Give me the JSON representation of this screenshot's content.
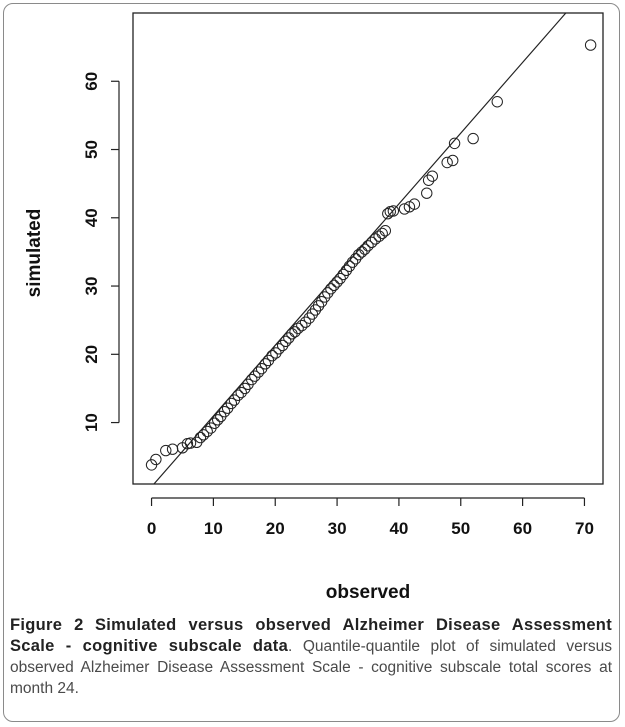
{
  "figure": {
    "label": "Figure 2",
    "title": "Simulated versus observed Alzheimer Disease Assessment Scale - cognitive subscale data",
    "description": ". Quantile-quantile plot of simulated versus observed Alzheimer Disease Assessment Scale - cognitive subscale total scores at month 24."
  },
  "chart_data": {
    "type": "scatter",
    "title": "",
    "xlabel": "observed",
    "ylabel": "simulated",
    "xlim": [
      -3,
      73
    ],
    "ylim": [
      1,
      70
    ],
    "x_ticks": [
      0,
      10,
      20,
      30,
      40,
      50,
      60,
      70
    ],
    "y_ticks": [
      10,
      20,
      30,
      40,
      50,
      60
    ],
    "grid": false,
    "marker": "open-circle",
    "reference_line": {
      "slope": 1.036,
      "intercept": 0.6
    },
    "points": [
      [
        0,
        3.8
      ],
      [
        0.7,
        4.6
      ],
      [
        2.3,
        5.9
      ],
      [
        3.4,
        6.1
      ],
      [
        5.0,
        6.3
      ],
      [
        5.8,
        6.9
      ],
      [
        6.3,
        7.0
      ],
      [
        7.3,
        7.1
      ],
      [
        7.9,
        7.8
      ],
      [
        8.4,
        8.2
      ],
      [
        9.0,
        8.7
      ],
      [
        9.6,
        9.2
      ],
      [
        10.2,
        9.9
      ],
      [
        10.7,
        10.4
      ],
      [
        11.2,
        10.9
      ],
      [
        11.8,
        11.6
      ],
      [
        12.3,
        12.1
      ],
      [
        12.9,
        12.8
      ],
      [
        13.4,
        13.3
      ],
      [
        14.0,
        14.0
      ],
      [
        14.5,
        14.4
      ],
      [
        15.1,
        15.0
      ],
      [
        15.6,
        15.6
      ],
      [
        16.2,
        16.3
      ],
      [
        16.7,
        16.8
      ],
      [
        17.3,
        17.4
      ],
      [
        17.8,
        17.9
      ],
      [
        18.4,
        18.6
      ],
      [
        18.9,
        19.1
      ],
      [
        19.5,
        19.8
      ],
      [
        20.1,
        20.2
      ],
      [
        20.6,
        20.8
      ],
      [
        21.2,
        21.3
      ],
      [
        21.7,
        21.9
      ],
      [
        22.2,
        22.4
      ],
      [
        22.7,
        23.0
      ],
      [
        23.2,
        23.3
      ],
      [
        23.7,
        23.8
      ],
      [
        24.3,
        24.2
      ],
      [
        24.9,
        24.7
      ],
      [
        25.5,
        25.3
      ],
      [
        26.0,
        25.9
      ],
      [
        26.5,
        26.5
      ],
      [
        27.0,
        27.1
      ],
      [
        27.5,
        27.7
      ],
      [
        28.0,
        28.4
      ],
      [
        28.5,
        29.0
      ],
      [
        29.0,
        29.6
      ],
      [
        29.5,
        30.1
      ],
      [
        30.0,
        30.6
      ],
      [
        30.5,
        31.1
      ],
      [
        31.0,
        31.7
      ],
      [
        31.5,
        32.3
      ],
      [
        32.0,
        32.9
      ],
      [
        32.5,
        33.5
      ],
      [
        33.0,
        34.0
      ],
      [
        33.5,
        34.6
      ],
      [
        34.0,
        35.0
      ],
      [
        34.5,
        35.4
      ],
      [
        35.0,
        35.9
      ],
      [
        35.6,
        36.4
      ],
      [
        36.2,
        36.9
      ],
      [
        36.8,
        37.3
      ],
      [
        37.3,
        37.7
      ],
      [
        37.8,
        38.1
      ],
      [
        38.2,
        40.6
      ],
      [
        38.6,
        40.9
      ],
      [
        39.1,
        41.0
      ],
      [
        40.9,
        41.3
      ],
      [
        41.7,
        41.6
      ],
      [
        42.5,
        42.0
      ],
      [
        44.5,
        43.6
      ],
      [
        44.8,
        45.5
      ],
      [
        45.4,
        46.1
      ],
      [
        47.8,
        48.1
      ],
      [
        48.7,
        48.4
      ],
      [
        49.0,
        50.9
      ],
      [
        52.0,
        51.6
      ],
      [
        55.9,
        57.0
      ],
      [
        71.0,
        65.3
      ]
    ]
  }
}
